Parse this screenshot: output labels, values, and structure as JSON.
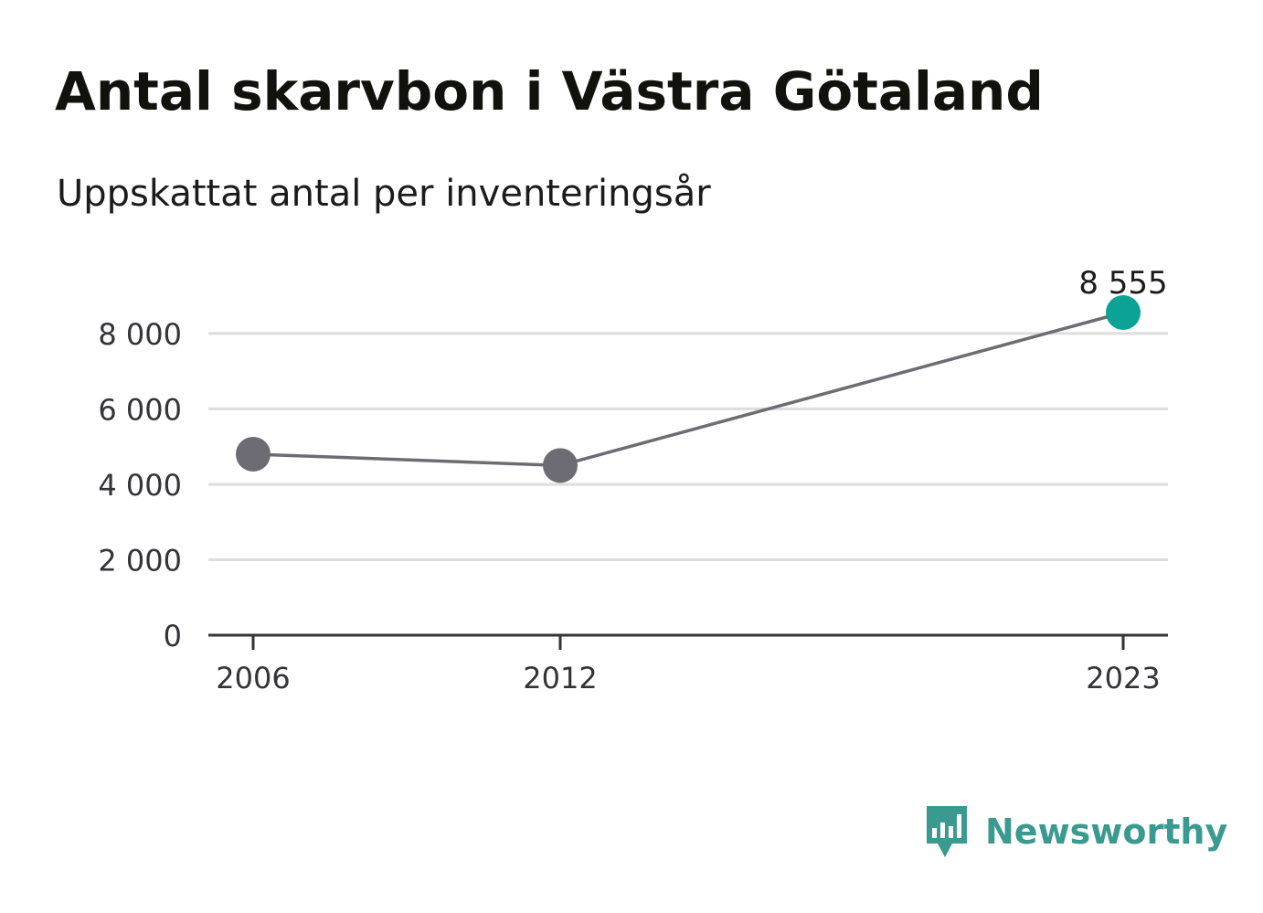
{
  "title": "Antal skarvbon i Västra Götaland",
  "subtitle": "Uppskattat antal per inventeringsår",
  "brand": {
    "name": "Newsworthy",
    "icon": "newsworthy-bar-chart-icon",
    "color": "#3a9a90"
  },
  "colors": {
    "line": "#6d6c74",
    "point": "#6d6c74",
    "highlight": "#0aa396",
    "grid": "#dddddd",
    "axis": "#333338"
  },
  "chart_data": {
    "type": "line",
    "title": "Antal skarvbon i Västra Götaland",
    "subtitle": "Uppskattat antal per inventeringsår",
    "xlabel": "",
    "ylabel": "",
    "x": [
      2006,
      2012,
      2023
    ],
    "x_tick_labels": [
      "2006",
      "2012",
      "2023"
    ],
    "values": [
      4800,
      4500,
      8555
    ],
    "data_labels": [
      "",
      "",
      "8 555"
    ],
    "highlight_index": 2,
    "ylim": [
      0,
      8555
    ],
    "xlim": [
      2006,
      2023
    ],
    "y_ticks": [
      0,
      2000,
      4000,
      6000,
      8000
    ],
    "y_tick_labels": [
      "0",
      "2 000",
      "4 000",
      "6 000",
      "8 000"
    ],
    "grid": true,
    "legend": "none"
  }
}
